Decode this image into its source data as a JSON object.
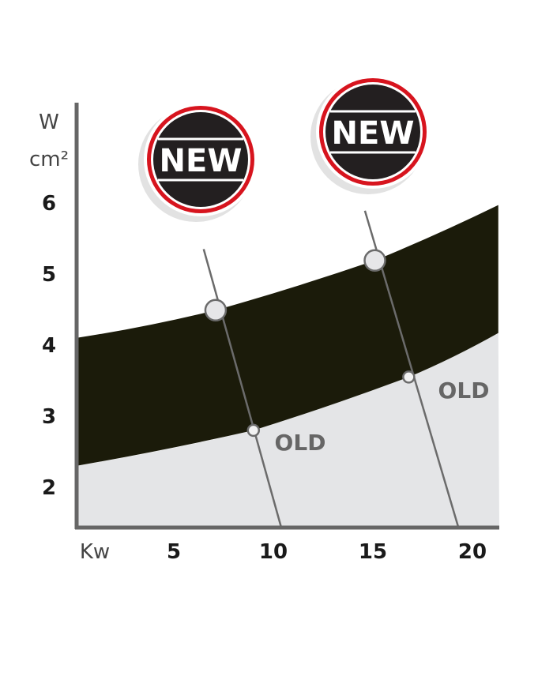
{
  "chart_data": {
    "type": "area",
    "xlabel": "Kw",
    "ylabel": [
      "W",
      "cm²"
    ],
    "x_ticks": [
      5,
      10,
      15,
      20
    ],
    "y_ticks": [
      2,
      3,
      4,
      5,
      6
    ],
    "xlim": [
      0.1,
      21.3
    ],
    "ylim": [
      1.4,
      7.1
    ],
    "grid": false,
    "band_upper": [
      [
        0.1,
        4.09
      ],
      [
        7.1,
        4.48
      ],
      [
        15.1,
        5.18
      ],
      [
        21.3,
        5.96
      ]
    ],
    "band_lower": [
      [
        0.1,
        2.29
      ],
      [
        9.0,
        2.79
      ],
      [
        16.8,
        3.54
      ],
      [
        21.3,
        4.16
      ]
    ],
    "guide_lines": [
      {
        "from": [
          6.5,
          5.34
        ],
        "to": [
          10.4,
          1.42
        ]
      },
      {
        "from": [
          14.6,
          5.88
        ],
        "to": [
          19.3,
          1.42
        ]
      }
    ],
    "new_points": [
      [
        7.1,
        4.48
      ],
      [
        15.1,
        5.18
      ]
    ],
    "old_points": [
      [
        9.0,
        2.79
      ],
      [
        16.8,
        3.54
      ]
    ],
    "old_label": "OLD",
    "badge_label": "NEW",
    "colors": {
      "band": "#1b1b0a",
      "below": "#e4e5e7",
      "axis": "#666666",
      "badge_ring": "#d7141e",
      "badge_fill": "#231f20",
      "old_text": "#666666"
    }
  }
}
